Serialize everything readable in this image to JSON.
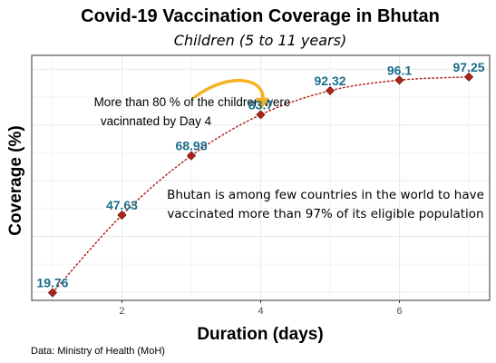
{
  "colors": {
    "point_fill": "#b5221b",
    "point_stroke": "#5a1a10",
    "line": "#b5221b",
    "data_label": "#1a6e8a",
    "arrow": "#f5b21f",
    "grid": "#ebebeb",
    "panel_border": "#333333"
  },
  "chart_data": {
    "type": "line",
    "title": "Covid-19 Vaccination Coverage in Bhutan",
    "subtitle": "Children (5 to 11 years)",
    "xlabel": "Duration (days)",
    "ylabel": "Coverage (%)",
    "x": [
      1,
      2,
      3,
      4,
      5,
      6,
      7
    ],
    "series": [
      {
        "values": [
          19.76,
          47.63,
          68.98,
          83.7,
          92.32,
          96.1,
          97.25
        ],
        "labels": [
          "19.76",
          "47.63",
          "68.98",
          "83.7",
          "92.32",
          "96.1",
          "97.25"
        ]
      }
    ],
    "xlim": [
      0.7,
      7.3
    ],
    "ylim": [
      17,
      105
    ],
    "x_ticks": [
      2,
      4,
      6
    ],
    "x_tick_labels": [
      "2",
      "4",
      "6"
    ],
    "y_grid_values": [
      20,
      40,
      60,
      80,
      100
    ],
    "line_style": "dotted",
    "marker": "diamond",
    "grid": true,
    "annotations": [
      {
        "lines": [
          "More than 80 % of the children were",
          "vacinnated by Day 4"
        ]
      },
      {
        "lines": [
          "Bhutan is among few countries in the world to have",
          "vaccinated more than 97% of its eligible population"
        ]
      }
    ],
    "caption": "Data: Ministry of Health (MoH)"
  }
}
